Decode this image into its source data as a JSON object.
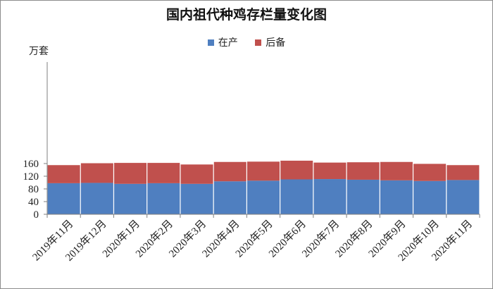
{
  "colors": {
    "in_production": "#4f7fc0",
    "reserve": "#c0504d"
  },
  "chart_data": {
    "type": "bar",
    "stacked": true,
    "title": "国内祖代种鸡存栏量变化图",
    "ylabel": "万套",
    "ylim": [
      0,
      160
    ],
    "yticks": [
      0,
      40,
      80,
      120,
      160
    ],
    "categories": [
      "2019年11月",
      "2019年12月",
      "2020年1月",
      "2020年2月",
      "2020年3月",
      "2020年4月",
      "2020年5月",
      "2020年6月",
      "2020年7月",
      "2020年8月",
      "2020年9月",
      "2020年10月",
      "2020年11月"
    ],
    "series": [
      {
        "name": "在产",
        "values": [
          98,
          99,
          96,
          98,
          96,
          104,
          106,
          110,
          111,
          109,
          107,
          105,
          108
        ]
      },
      {
        "name": "后备",
        "values": [
          57,
          62,
          66,
          64,
          61,
          61,
          60,
          59,
          52,
          55,
          58,
          54,
          47
        ]
      }
    ],
    "legend_position": "top-center",
    "grid": false
  }
}
